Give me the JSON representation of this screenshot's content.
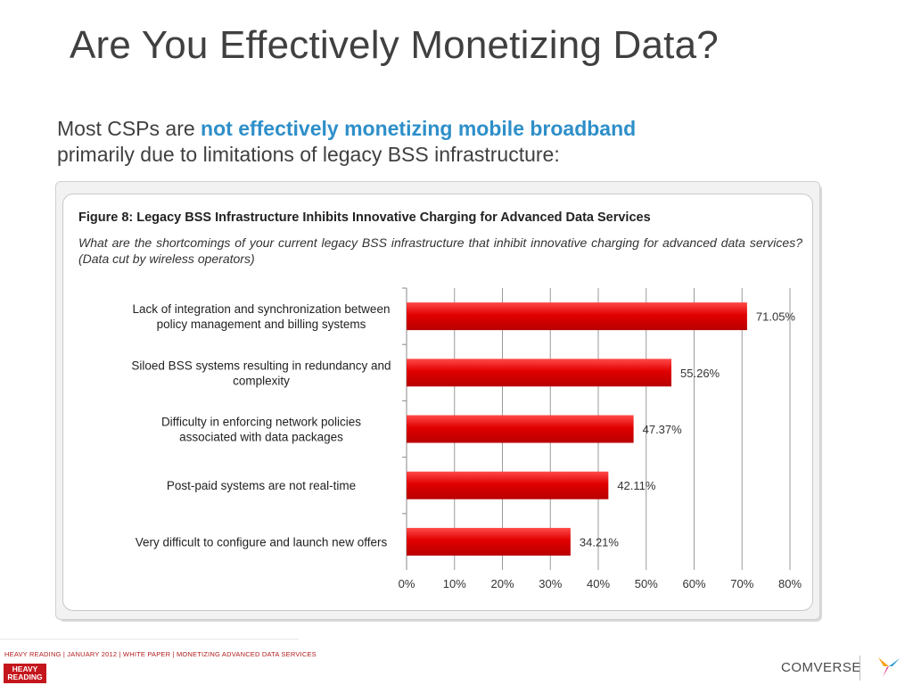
{
  "slide": {
    "title": "Are You Effectively Monetizing Data?",
    "intro_prefix": "Most CSPs are ",
    "intro_highlight": "not effectively monetizing mobile broadband",
    "intro_suffix": "primarily due to limitations of legacy BSS infrastructure:"
  },
  "figure": {
    "title": "Figure 8: Legacy BSS Infrastructure Inhibits Innovative Charging for Advanced Data Services",
    "question": "What are the shortcomings of your current legacy BSS infrastructure that inhibit innovative charging for advanced data services? (Data cut by wireless operators)"
  },
  "chart_data": {
    "type": "bar",
    "orientation": "horizontal",
    "categories": [
      [
        "Lack of integration and synchronization between",
        "policy management and billing systems"
      ],
      [
        "Siloed BSS systems resulting in redundancy and",
        "complexity"
      ],
      [
        "Difficulty in enforcing network policies",
        "associated with data packages"
      ],
      [
        "Post-paid systems are not real-time"
      ],
      [
        "Very difficult to configure and launch new offers"
      ]
    ],
    "values": [
      71.05,
      55.26,
      47.37,
      42.11,
      34.21
    ],
    "value_labels": [
      "71.05%",
      "55.26%",
      "47.37%",
      "42.11%",
      "34.21%"
    ],
    "ticks": [
      "0%",
      "10%",
      "20%",
      "30%",
      "40%",
      "50%",
      "60%",
      "70%",
      "80%"
    ],
    "xlim": [
      0,
      80
    ],
    "grid": true,
    "bar_color": "#d90000"
  },
  "footer": {
    "text": "HEAVY READING | JANUARY 2012 | WHITE PAPER | MONETIZING ADVANCED DATA SERVICES",
    "hr_logo_line1": "HEAVY",
    "hr_logo_line2": "READING",
    "brand": "COMVERSE"
  }
}
